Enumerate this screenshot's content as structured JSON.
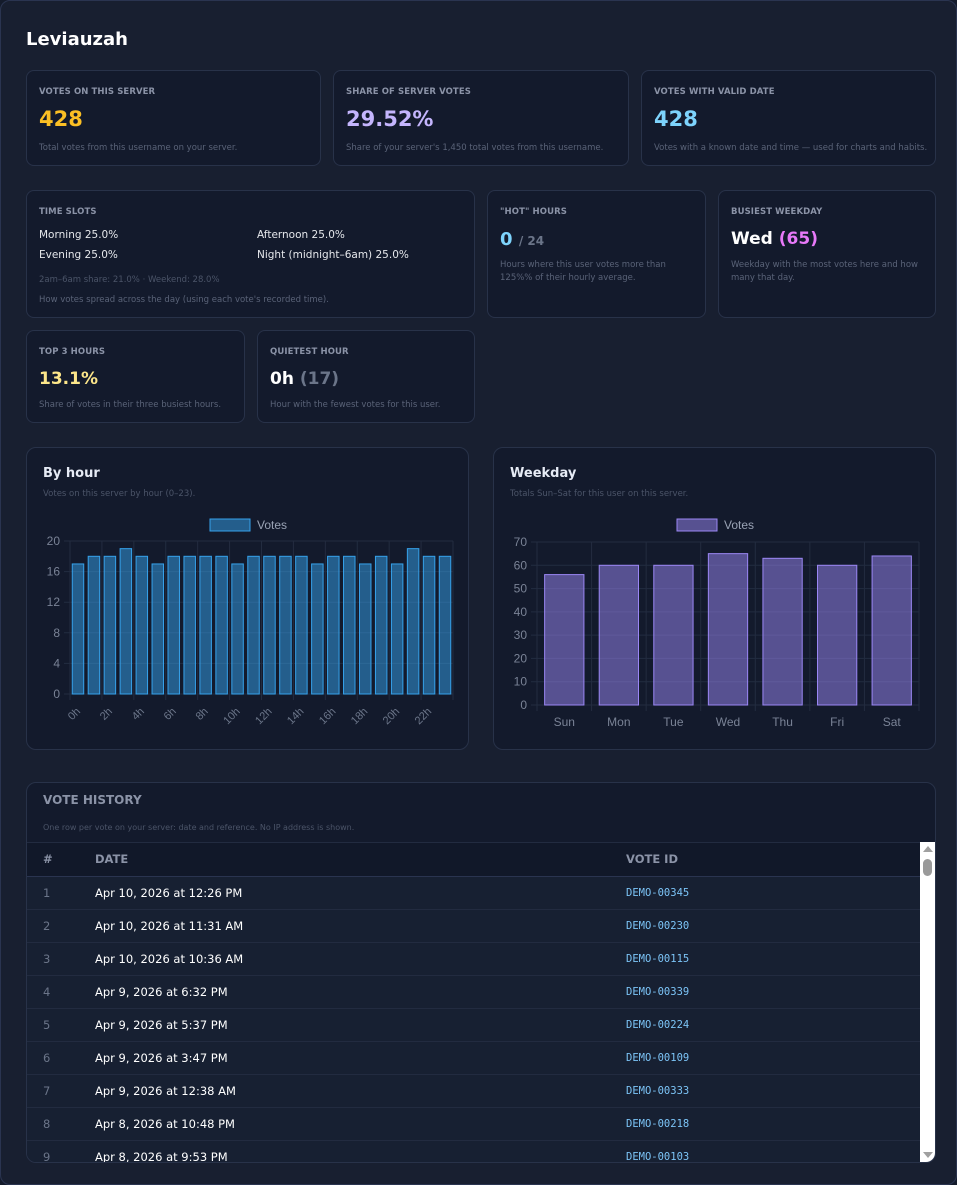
{
  "page": {
    "title": "Leviauzah"
  },
  "stats": {
    "votes_on_server": {
      "label": "VOTES ON THIS SERVER",
      "value": "428",
      "desc": "Total votes from this username on your server.",
      "color": "#fbbf24"
    },
    "share_of_server": {
      "label": "SHARE OF SERVER VOTES",
      "value": "29.52%",
      "desc": "Share of your server's 1,450 total votes from this username.",
      "color": "#c4b5fd"
    },
    "valid_date": {
      "label": "VOTES WITH VALID DATE",
      "value": "428",
      "desc": "Votes with a known date and time — used for charts and habits.",
      "color": "#7dd3fc"
    },
    "time_slots": {
      "label": "TIME SLOTS",
      "morning": "Morning 25.0%",
      "afternoon": "Afternoon 25.0%",
      "evening": "Evening 25.0%",
      "night": "Night (midnight–6am) 25.0%",
      "extra": "2am–6am share: 21.0% · Weekend: 28.0%",
      "desc": "How votes spread across the day (using each vote's recorded time)."
    },
    "hot_hours": {
      "label": "\"HOT\" HOURS",
      "value": "0",
      "suffix": "/ 24",
      "desc": "Hours where this user votes more than 125%% of their hourly average."
    },
    "busiest_weekday": {
      "label": "BUSIEST WEEKDAY",
      "value": "Wed",
      "count": "(65)",
      "desc": "Weekday with the most votes here and how many that day."
    },
    "top3_hours": {
      "label": "TOP 3 HOURS",
      "value": "13.1%",
      "desc": "Share of votes in their three busiest hours."
    },
    "quietest_hour": {
      "label": "QUIETEST HOUR",
      "value": "0h",
      "count": "(17)",
      "desc": "Hour with the fewest votes for this user."
    }
  },
  "chart_data": [
    {
      "type": "bar",
      "title": "By hour",
      "subtitle": "Votes on this server by hour (0–23).",
      "legend": "Votes",
      "legend_position": "top",
      "categories": [
        "0h",
        "1h",
        "2h",
        "3h",
        "4h",
        "5h",
        "6h",
        "7h",
        "8h",
        "9h",
        "10h",
        "11h",
        "12h",
        "13h",
        "14h",
        "15h",
        "16h",
        "17h",
        "18h",
        "19h",
        "20h",
        "21h",
        "22h",
        "23h"
      ],
      "tick_labels": [
        "0h",
        "2h",
        "4h",
        "6h",
        "8h",
        "10h",
        "12h",
        "14h",
        "16h",
        "18h",
        "20h",
        "22h"
      ],
      "values": [
        17,
        18,
        18,
        19,
        18,
        17,
        18,
        18,
        18,
        18,
        17,
        18,
        18,
        18,
        18,
        17,
        18,
        18,
        17,
        18,
        17,
        19,
        18,
        18
      ],
      "yticks": [
        0,
        4,
        8,
        12,
        16,
        20
      ],
      "ylim": [
        0,
        20
      ],
      "grid": true,
      "color": "#36a2eb"
    },
    {
      "type": "bar",
      "title": "Weekday",
      "subtitle": "Totals Sun–Sat for this user on this server.",
      "legend": "Votes",
      "legend_position": "top",
      "categories": [
        "Sun",
        "Mon",
        "Tue",
        "Wed",
        "Thu",
        "Fri",
        "Sat"
      ],
      "values": [
        56,
        60,
        60,
        65,
        63,
        60,
        64
      ],
      "yticks": [
        0,
        10,
        20,
        30,
        40,
        50,
        60,
        70
      ],
      "ylim": [
        0,
        70
      ],
      "grid": true,
      "color": "#9b87f5"
    }
  ],
  "history": {
    "title": "VOTE HISTORY",
    "subtitle": "One row per vote on your server: date and reference. No IP address is shown.",
    "columns": [
      "#",
      "DATE",
      "VOTE ID"
    ],
    "rows": [
      {
        "n": "1",
        "date": "Apr 10, 2026 at 12:26 PM",
        "id": "DEMO-00345"
      },
      {
        "n": "2",
        "date": "Apr 10, 2026 at 11:31 AM",
        "id": "DEMO-00230"
      },
      {
        "n": "3",
        "date": "Apr 10, 2026 at 10:36 AM",
        "id": "DEMO-00115"
      },
      {
        "n": "4",
        "date": "Apr 9, 2026 at 6:32 PM",
        "id": "DEMO-00339"
      },
      {
        "n": "5",
        "date": "Apr 9, 2026 at 5:37 PM",
        "id": "DEMO-00224"
      },
      {
        "n": "6",
        "date": "Apr 9, 2026 at 3:47 PM",
        "id": "DEMO-00109"
      },
      {
        "n": "7",
        "date": "Apr 9, 2026 at 12:38 AM",
        "id": "DEMO-00333"
      },
      {
        "n": "8",
        "date": "Apr 8, 2026 at 10:48 PM",
        "id": "DEMO-00218"
      },
      {
        "n": "9",
        "date": "Apr 8, 2026 at 9:53 PM",
        "id": "DEMO-00103"
      }
    ]
  }
}
